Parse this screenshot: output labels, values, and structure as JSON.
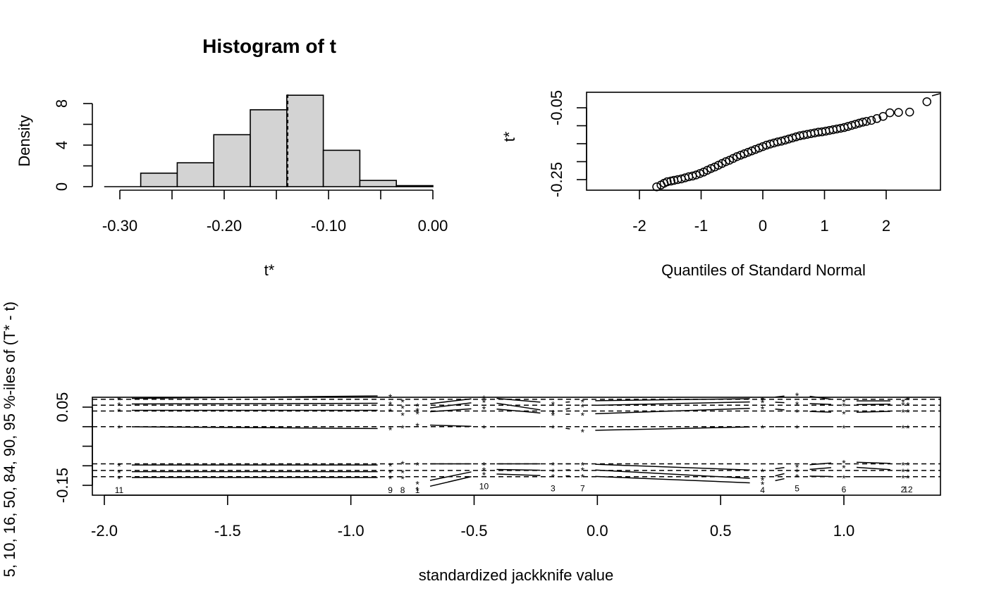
{
  "chart_data": [
    {
      "type": "histogram",
      "title": "Histogram of t",
      "xlabel": "t*",
      "ylabel": "Density",
      "xlim": [
        -0.32,
        0.0
      ],
      "ylim": [
        0,
        9
      ],
      "xticks": [
        -0.3,
        -0.2,
        -0.1,
        0.0
      ],
      "xtick_labels": [
        "-0.30",
        "-0.20",
        "-0.10",
        "0.00"
      ],
      "yticks_major": [
        0,
        4,
        8
      ],
      "ytick_labels": [
        "0",
        "4",
        "8"
      ],
      "yticks_all": [
        0,
        2,
        4,
        6,
        8
      ],
      "bin_edges": [
        -0.315,
        -0.28,
        -0.245,
        -0.21,
        -0.175,
        -0.14,
        -0.105,
        -0.07,
        -0.035,
        0.0
      ],
      "densities": [
        0.0,
        1.3,
        2.3,
        5.0,
        7.4,
        8.8,
        3.5,
        0.6,
        0.1
      ],
      "vline": -0.139
    },
    {
      "type": "scatter",
      "title": "",
      "xlabel": "Quantiles of Standard Normal",
      "ylabel": "t*",
      "xlim": [
        -2.8,
        2.8
      ],
      "ylim": [
        -0.305,
        -0.025
      ],
      "xticks": [
        -2,
        -1,
        0,
        1,
        2
      ],
      "xtick_labels": [
        "-2",
        "-1",
        "0",
        "1",
        "2"
      ],
      "yticks_major": [
        -0.25,
        -0.05
      ],
      "ytick_labels": [
        "-0.25",
        "-0.05"
      ],
      "yticks_all": [
        -0.25,
        -0.2,
        -0.15,
        -0.1,
        -0.05
      ],
      "points": [
        [
          -2.66,
          -0.295
        ],
        [
          -2.4,
          -0.29
        ],
        [
          -2.26,
          -0.288
        ],
        [
          -2.14,
          -0.285
        ],
        [
          -2.03,
          -0.282
        ],
        [
          -1.94,
          -0.28
        ],
        [
          -1.86,
          -0.277
        ],
        [
          -1.79,
          -0.273
        ],
        [
          -1.72,
          -0.27
        ],
        [
          -1.65,
          -0.265
        ],
        [
          -1.6,
          -0.26
        ],
        [
          -1.55,
          -0.256
        ],
        [
          -1.49,
          -0.254
        ],
        [
          -1.44,
          -0.252
        ],
        [
          -1.38,
          -0.25
        ],
        [
          -1.32,
          -0.248
        ],
        [
          -1.26,
          -0.245
        ],
        [
          -1.2,
          -0.242
        ],
        [
          -1.14,
          -0.24
        ],
        [
          -1.08,
          -0.237
        ],
        [
          -1.02,
          -0.233
        ],
        [
          -0.96,
          -0.229
        ],
        [
          -0.9,
          -0.224
        ],
        [
          -0.84,
          -0.219
        ],
        [
          -0.78,
          -0.215
        ],
        [
          -0.72,
          -0.21
        ],
        [
          -0.66,
          -0.205
        ],
        [
          -0.6,
          -0.2
        ],
        [
          -0.54,
          -0.196
        ],
        [
          -0.48,
          -0.191
        ],
        [
          -0.42,
          -0.186
        ],
        [
          -0.36,
          -0.182
        ],
        [
          -0.3,
          -0.178
        ],
        [
          -0.24,
          -0.174
        ],
        [
          -0.18,
          -0.17
        ],
        [
          -0.12,
          -0.166
        ],
        [
          -0.06,
          -0.162
        ],
        [
          0.0,
          -0.158
        ],
        [
          0.06,
          -0.154
        ],
        [
          0.12,
          -0.151
        ],
        [
          0.18,
          -0.148
        ],
        [
          0.24,
          -0.145
        ],
        [
          0.3,
          -0.143
        ],
        [
          0.36,
          -0.14
        ],
        [
          0.42,
          -0.137
        ],
        [
          0.48,
          -0.134
        ],
        [
          0.54,
          -0.131
        ],
        [
          0.6,
          -0.128
        ],
        [
          0.66,
          -0.126
        ],
        [
          0.72,
          -0.124
        ],
        [
          0.78,
          -0.122
        ],
        [
          0.84,
          -0.12
        ],
        [
          0.9,
          -0.118
        ],
        [
          0.96,
          -0.117
        ],
        [
          1.02,
          -0.115
        ],
        [
          1.08,
          -0.113
        ],
        [
          1.14,
          -0.111
        ],
        [
          1.2,
          -0.109
        ],
        [
          1.26,
          -0.107
        ],
        [
          1.32,
          -0.105
        ],
        [
          1.38,
          -0.102
        ],
        [
          1.44,
          -0.099
        ],
        [
          1.5,
          -0.096
        ],
        [
          1.56,
          -0.093
        ],
        [
          1.62,
          -0.09
        ],
        [
          1.68,
          -0.088
        ],
        [
          1.76,
          -0.085
        ],
        [
          1.85,
          -0.08
        ],
        [
          1.95,
          -0.074
        ],
        [
          2.06,
          -0.064
        ],
        [
          2.2,
          -0.063
        ],
        [
          2.38,
          -0.062
        ],
        [
          2.66,
          -0.033
        ]
      ]
    },
    {
      "type": "line",
      "title": "",
      "xlabel": "standardized jackknife value",
      "ylabel": "5, 10, 16, 50, 84, 90, 95 %-iles of (T* - t)",
      "xlim": [
        -2.05,
        1.4
      ],
      "ylim": [
        -0.195,
        0.1
      ],
      "xticks": [
        -2.0,
        -1.5,
        -1.0,
        -0.5,
        0.0,
        0.5,
        1.0
      ],
      "xtick_labels": [
        "-2.0",
        "-1.5",
        "-1.0",
        "-0.5",
        "0.0",
        "0.5",
        "1.0"
      ],
      "yticks_major": [
        -0.15,
        0.05
      ],
      "ytick_labels": [
        "-0.15",
        "0.05"
      ],
      "yticks_all": [
        -0.15,
        -0.1,
        -0.05,
        0.0,
        0.05
      ],
      "reference_quantiles": [
        -0.128,
        -0.112,
        -0.095,
        0.0,
        0.04,
        0.055,
        0.07
      ],
      "jackknife_points": [
        {
          "label": "11",
          "x": -1.94,
          "q": [
            -0.13,
            -0.115,
            -0.098,
            0.0,
            0.042,
            0.058,
            0.072
          ]
        },
        {
          "label": "9",
          "x": -0.84,
          "q": [
            -0.13,
            -0.115,
            -0.098,
            -0.005,
            0.042,
            0.06,
            0.079
          ]
        },
        {
          "label": "8",
          "x": -0.79,
          "q": [
            -0.13,
            -0.115,
            -0.092,
            0.0,
            0.032,
            0.05,
            0.066
          ]
        },
        {
          "label": "1",
          "x": -0.73,
          "q": [
            -0.16,
            -0.144,
            -0.095,
            0.005,
            0.036,
            0.044,
            0.055
          ]
        },
        {
          "label": "10",
          "x": -0.46,
          "q": [
            -0.12,
            -0.109,
            -0.095,
            0.0,
            0.048,
            0.065,
            0.075
          ]
        },
        {
          "label": "3",
          "x": -0.18,
          "q": [
            -0.126,
            -0.112,
            -0.095,
            0.0,
            0.032,
            0.038,
            0.06
          ]
        },
        {
          "label": "7",
          "x": -0.06,
          "q": [
            -0.126,
            -0.109,
            -0.095,
            -0.01,
            0.032,
            0.054,
            0.066
          ]
        },
        {
          "label": "4",
          "x": 0.67,
          "q": [
            -0.145,
            -0.134,
            -0.112,
            0.0,
            0.048,
            0.064,
            0.072
          ]
        },
        {
          "label": "5",
          "x": 0.81,
          "q": [
            -0.126,
            -0.112,
            -0.1,
            0.0,
            0.04,
            0.06,
            0.082
          ]
        },
        {
          "label": "6",
          "x": 1.0,
          "q": [
            -0.128,
            -0.102,
            -0.09,
            0.0,
            0.036,
            0.056,
            0.066
          ]
        },
        {
          "label": "2",
          "x": 1.24,
          "q": [
            -0.128,
            -0.112,
            -0.095,
            0.0,
            0.04,
            0.058,
            0.066
          ]
        },
        {
          "label": "12",
          "x": 1.26,
          "q": [
            -0.128,
            -0.112,
            -0.095,
            0.0,
            0.04,
            0.058,
            0.072
          ]
        }
      ]
    }
  ]
}
